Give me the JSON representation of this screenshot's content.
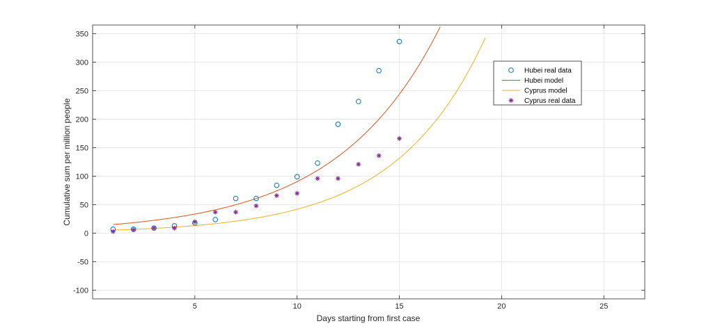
{
  "chart_data": {
    "type": "scatter",
    "title": "",
    "xlabel": "Days starting from first case",
    "ylabel": "Cumulative sum per million people",
    "xlim": [
      0,
      27
    ],
    "ylim": [
      -115,
      365
    ],
    "xticks": [
      5,
      10,
      15,
      20,
      25
    ],
    "yticks": [
      -100,
      -50,
      0,
      50,
      100,
      150,
      200,
      250,
      300,
      350
    ],
    "grid": true,
    "legend_position": "top-right",
    "series": [
      {
        "name": "Hubei real data",
        "kind": "scatter",
        "marker": "circle",
        "color": "#0072BD",
        "x": [
          1,
          2,
          3,
          4,
          5,
          6,
          7,
          8,
          9,
          10,
          11,
          12,
          13,
          14,
          15
        ],
        "y": [
          7,
          7,
          9,
          13,
          18,
          24,
          61,
          61,
          84,
          99,
          123,
          191,
          231,
          285,
          336
        ]
      },
      {
        "name": "Hubei model",
        "kind": "line",
        "color": "#D95319",
        "model": {
          "form": "exponential",
          "a": 12.5,
          "b": 0.198
        },
        "x_range": [
          1,
          17
        ]
      },
      {
        "name": "Cyprus model",
        "kind": "line",
        "color": "#EDB120",
        "model": {
          "form": "exponential",
          "a": 4.3,
          "b": 0.228
        },
        "x_range": [
          1,
          19.2
        ]
      },
      {
        "name": "Cyprus real data",
        "kind": "scatter",
        "marker": "asterisk",
        "color": "#7E2F8E",
        "x": [
          1,
          2,
          3,
          4,
          5,
          6,
          7,
          8,
          9,
          10,
          11,
          12,
          13,
          14,
          15
        ],
        "y": [
          3,
          6,
          9,
          9,
          20,
          37,
          37,
          48,
          66,
          70,
          96,
          96,
          121,
          136,
          166
        ]
      }
    ]
  }
}
